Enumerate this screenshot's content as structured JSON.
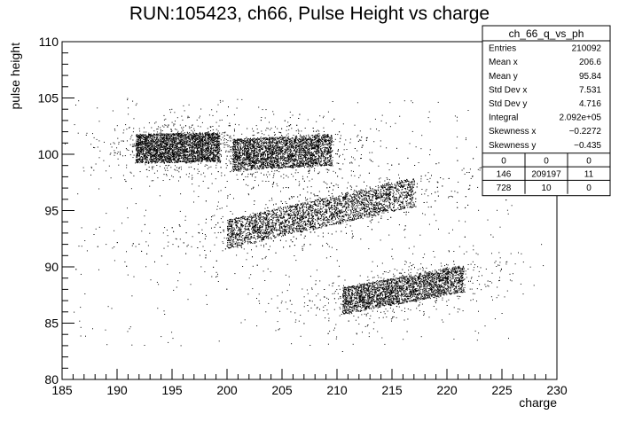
{
  "chart_data": {
    "type": "heatmap",
    "title": "RUN:105423, ch66, Pulse Height vs charge",
    "xlabel": "charge",
    "ylabel": "pulse height",
    "xlim": [
      185,
      230
    ],
    "ylim": [
      80,
      110
    ],
    "x_ticks": [
      "185",
      "190",
      "195",
      "200",
      "205",
      "210",
      "215",
      "220",
      "225",
      "230"
    ],
    "y_ticks": [
      "80",
      "85",
      "90",
      "95",
      "100",
      "105",
      "110"
    ],
    "grid": false,
    "clusters": [
      {
        "x_center": 195.5,
        "y_center": 100.6,
        "x_half_width": 3.8,
        "y_half_width": 1.3,
        "slope": 0.02,
        "weight": 0.22
      },
      {
        "x_center": 205.0,
        "y_center": 100.2,
        "x_half_width": 4.5,
        "y_half_width": 1.4,
        "slope": 0.05,
        "weight": 0.26
      },
      {
        "x_center": 208.5,
        "y_center": 94.8,
        "x_half_width": 8.5,
        "y_half_width": 1.3,
        "slope": 0.22,
        "weight": 0.3
      },
      {
        "x_center": 216.0,
        "y_center": 88.0,
        "x_half_width": 5.5,
        "y_half_width": 1.2,
        "slope": 0.18,
        "weight": 0.22
      }
    ],
    "stats_box": {
      "title": "ch_66_q_vs_ph",
      "rows": [
        {
          "label": "Entries",
          "value": "210092"
        },
        {
          "label": "Mean x",
          "value": "206.6"
        },
        {
          "label": "Mean y",
          "value": "95.84"
        },
        {
          "label": "Std Dev x",
          "value": "7.531"
        },
        {
          "label": "Std Dev y",
          "value": "4.716"
        },
        {
          "label": "Integral",
          "value": "2.092e+05"
        },
        {
          "label": "Skewness x",
          "value": "−0.2272"
        },
        {
          "label": "Skewness y",
          "value": "−0.435"
        }
      ],
      "grid": [
        [
          "0",
          "0",
          "0"
        ],
        [
          "146",
          "209197",
          "11"
        ],
        [
          "728",
          "10",
          "0"
        ]
      ]
    }
  }
}
